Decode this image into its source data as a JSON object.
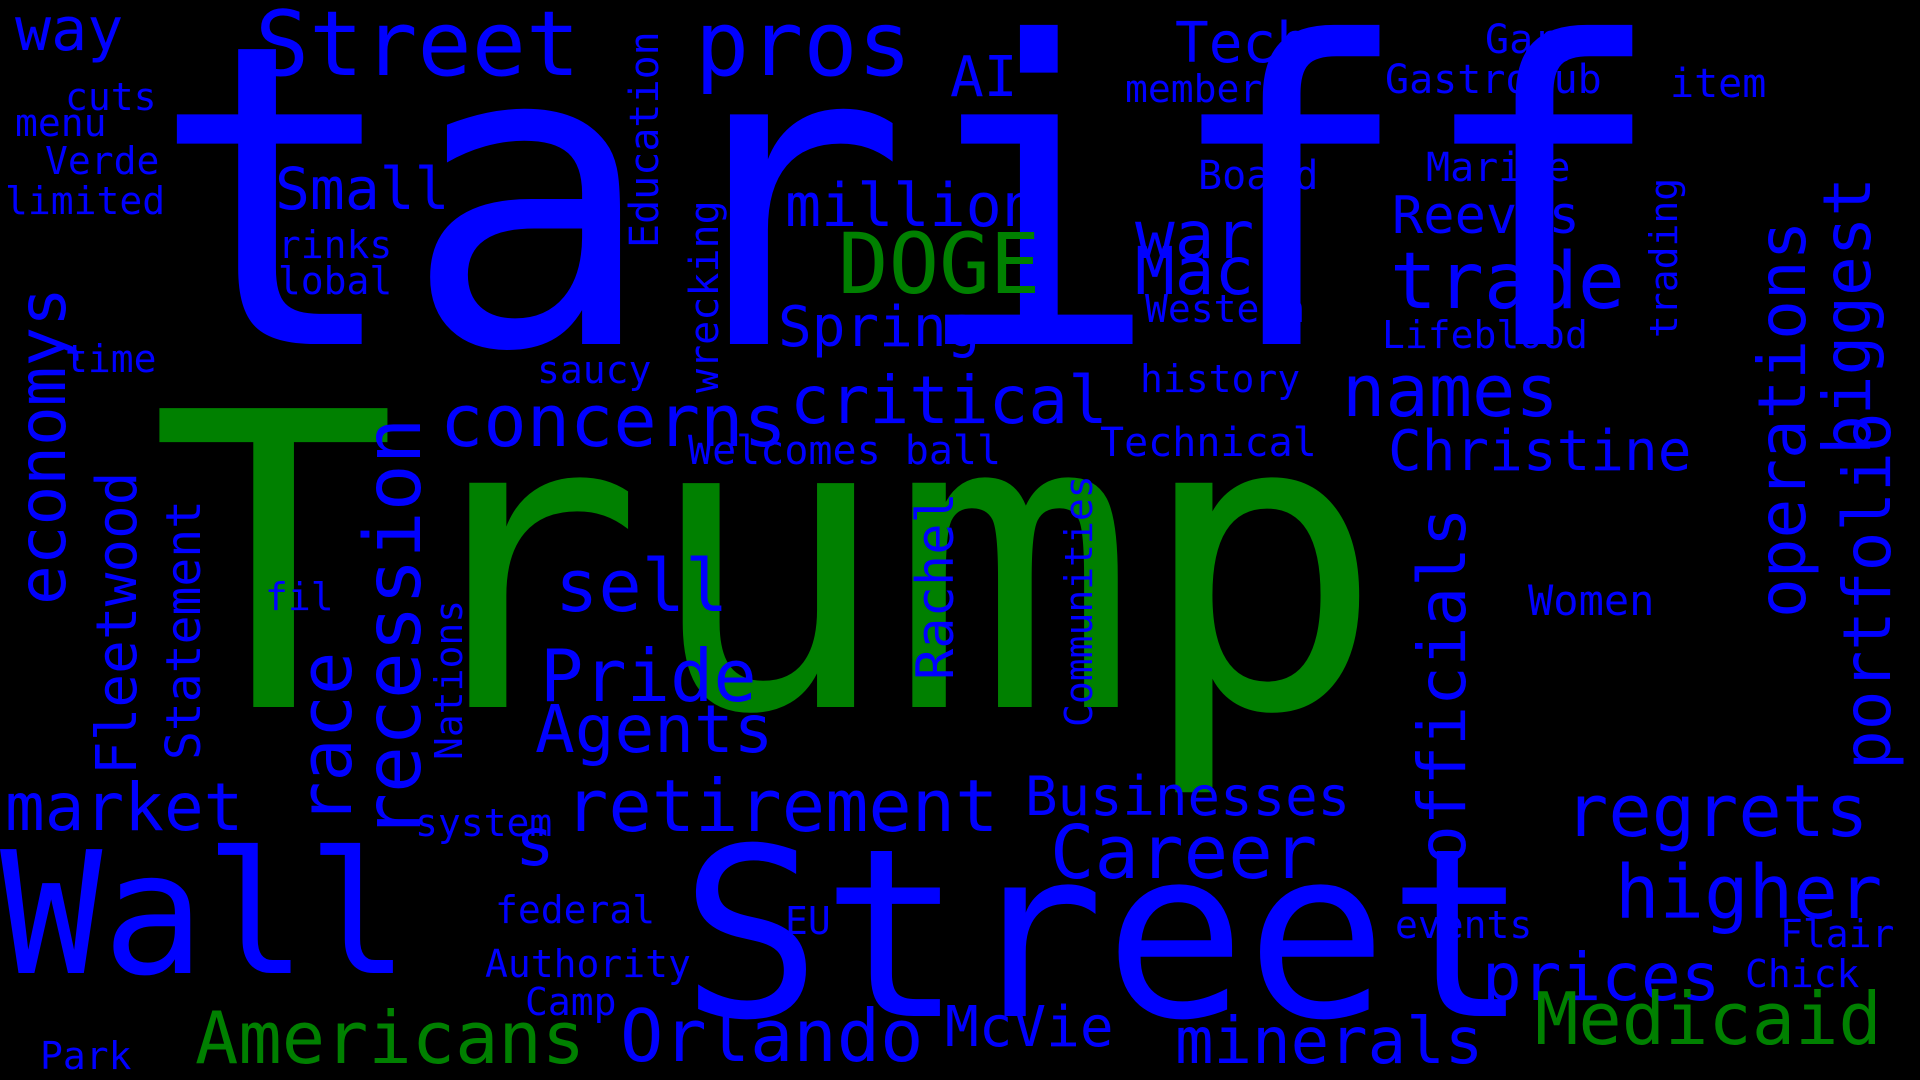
{
  "colors": {
    "background": "#000000",
    "blue": "#0000ff",
    "green": "#008000"
  },
  "words": [
    {
      "text": "tariff",
      "color": "blue",
      "orient": "h"
    },
    {
      "text": "Trump",
      "color": "green",
      "orient": "h"
    },
    {
      "text": "Wall",
      "color": "blue",
      "orient": "h"
    },
    {
      "text": "Street",
      "color": "blue",
      "orient": "h"
    },
    {
      "text": "Street",
      "color": "blue",
      "orient": "h"
    },
    {
      "text": "pros",
      "color": "blue",
      "orient": "h"
    },
    {
      "text": "way",
      "color": "blue",
      "orient": "h"
    },
    {
      "text": "Tech",
      "color": "blue",
      "orient": "h"
    },
    {
      "text": "Gary",
      "color": "blue",
      "orient": "h"
    },
    {
      "text": "Gastropub",
      "color": "blue",
      "orient": "h"
    },
    {
      "text": "item",
      "color": "blue",
      "orient": "h"
    },
    {
      "text": "member",
      "color": "blue",
      "orient": "h"
    },
    {
      "text": "AI",
      "color": "blue",
      "orient": "h"
    },
    {
      "text": "cuts",
      "color": "blue",
      "orient": "h"
    },
    {
      "text": "menu",
      "color": "blue",
      "orient": "h"
    },
    {
      "text": "Verde",
      "color": "blue",
      "orient": "h"
    },
    {
      "text": "limited",
      "color": "blue",
      "orient": "h"
    },
    {
      "text": "Small",
      "color": "blue",
      "orient": "h"
    },
    {
      "text": "drinks",
      "color": "blue",
      "orient": "h"
    },
    {
      "text": "global",
      "color": "blue",
      "orient": "h"
    },
    {
      "text": "million",
      "color": "blue",
      "orient": "h"
    },
    {
      "text": "DOGE",
      "color": "green",
      "orient": "h"
    },
    {
      "text": "war",
      "color": "blue",
      "orient": "h"
    },
    {
      "text": "Mac",
      "color": "blue",
      "orient": "h"
    },
    {
      "text": "Board",
      "color": "blue",
      "orient": "h"
    },
    {
      "text": "Marine",
      "color": "blue",
      "orient": "h"
    },
    {
      "text": "Reeves",
      "color": "blue",
      "orient": "h"
    },
    {
      "text": "trade",
      "color": "blue",
      "orient": "h"
    },
    {
      "text": "Western",
      "color": "blue",
      "orient": "h"
    },
    {
      "text": "Lifeblood",
      "color": "blue",
      "orient": "h"
    },
    {
      "text": "Spring",
      "color": "blue",
      "orient": "h"
    },
    {
      "text": "time",
      "color": "blue",
      "orient": "h"
    },
    {
      "text": "saucy",
      "color": "blue",
      "orient": "h"
    },
    {
      "text": "critical",
      "color": "blue",
      "orient": "h"
    },
    {
      "text": "history",
      "color": "blue",
      "orient": "h"
    },
    {
      "text": "concerns",
      "color": "blue",
      "orient": "h"
    },
    {
      "text": "names",
      "color": "blue",
      "orient": "h"
    },
    {
      "text": "Christine",
      "color": "blue",
      "orient": "h"
    },
    {
      "text": "Welcomes ball",
      "color": "blue",
      "orient": "h"
    },
    {
      "text": "Technical",
      "color": "blue",
      "orient": "h"
    },
    {
      "text": "sell",
      "color": "blue",
      "orient": "h"
    },
    {
      "text": "fil",
      "color": "blue",
      "orient": "h"
    },
    {
      "text": "Women",
      "color": "blue",
      "orient": "h"
    },
    {
      "text": "Pride",
      "color": "blue",
      "orient": "h"
    },
    {
      "text": "Agents",
      "color": "blue",
      "orient": "h"
    },
    {
      "text": "Businesses",
      "color": "blue",
      "orient": "h"
    },
    {
      "text": "market",
      "color": "blue",
      "orient": "h"
    },
    {
      "text": "system",
      "color": "blue",
      "orient": "h"
    },
    {
      "text": "retirement",
      "color": "blue",
      "orient": "h"
    },
    {
      "text": "regrets",
      "color": "blue",
      "orient": "h"
    },
    {
      "text": "s",
      "color": "blue",
      "orient": "h"
    },
    {
      "text": "Career",
      "color": "blue",
      "orient": "h"
    },
    {
      "text": "higher",
      "color": "blue",
      "orient": "h"
    },
    {
      "text": "federal",
      "color": "blue",
      "orient": "h"
    },
    {
      "text": "EU",
      "color": "blue",
      "orient": "h"
    },
    {
      "text": "events",
      "color": "blue",
      "orient": "h"
    },
    {
      "text": "Flair",
      "color": "blue",
      "orient": "h"
    },
    {
      "text": "Authority",
      "color": "blue",
      "orient": "h"
    },
    {
      "text": "prices",
      "color": "blue",
      "orient": "h"
    },
    {
      "text": "Chick",
      "color": "blue",
      "orient": "h"
    },
    {
      "text": "Camp",
      "color": "blue",
      "orient": "h"
    },
    {
      "text": "Medicaid",
      "color": "green",
      "orient": "h"
    },
    {
      "text": "Park",
      "color": "blue",
      "orient": "h"
    },
    {
      "text": "Americans",
      "color": "green",
      "orient": "h"
    },
    {
      "text": "Orlando",
      "color": "blue",
      "orient": "h"
    },
    {
      "text": "McVie",
      "color": "blue",
      "orient": "h"
    },
    {
      "text": "minerals",
      "color": "blue",
      "orient": "h"
    },
    {
      "text": "economys",
      "color": "blue",
      "orient": "v"
    },
    {
      "text": "Fleetwood",
      "color": "blue",
      "orient": "v"
    },
    {
      "text": "Statement",
      "color": "blue",
      "orient": "v"
    },
    {
      "text": "race",
      "color": "blue",
      "orient": "v"
    },
    {
      "text": "recession",
      "color": "blue",
      "orient": "v"
    },
    {
      "text": "Nations",
      "color": "blue",
      "orient": "v"
    },
    {
      "text": "Education",
      "color": "blue",
      "orient": "v"
    },
    {
      "text": "wrecking",
      "color": "blue",
      "orient": "v"
    },
    {
      "text": "Rachel",
      "color": "blue",
      "orient": "v"
    },
    {
      "text": "Communities",
      "color": "blue",
      "orient": "v"
    },
    {
      "text": "officials",
      "color": "blue",
      "orient": "v"
    },
    {
      "text": "trading",
      "color": "blue",
      "orient": "v"
    },
    {
      "text": "operations",
      "color": "blue",
      "orient": "v"
    },
    {
      "text": "biggest",
      "color": "blue",
      "orient": "v"
    },
    {
      "text": "portfolio",
      "color": "blue",
      "orient": "v"
    }
  ]
}
